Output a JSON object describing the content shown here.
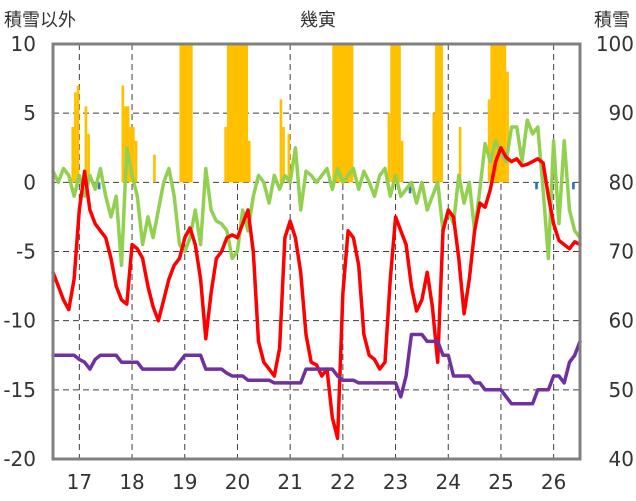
{
  "chart_data": {
    "type": "bar+line",
    "title": "幾寅",
    "left_axis_label": "積雪以外",
    "right_axis_label": "積雪",
    "left_ylim": [
      -20,
      10
    ],
    "left_ticks": [
      "10",
      "5",
      "0",
      "-5",
      "-10",
      "-15",
      "-20"
    ],
    "right_ylim": [
      40,
      100
    ],
    "right_ticks": [
      "100",
      "90",
      "80",
      "70",
      "60",
      "50",
      "40"
    ],
    "xlim": [
      16.5,
      26.5
    ],
    "x_ticks": [
      "17",
      "18",
      "19",
      "20",
      "21",
      "22",
      "23",
      "24",
      "25",
      "26"
    ],
    "grid": true,
    "colors": {
      "snow_bars": "#FFC000",
      "low_bars": "#2E75B6",
      "red": "#FF0000",
      "green": "#92D050",
      "purple": "#7030A0"
    },
    "snow_bars": [
      {
        "x_from": 16.85,
        "x_to": 16.9,
        "value": 4
      },
      {
        "x_from": 16.9,
        "x_to": 16.95,
        "value": 6.5
      },
      {
        "x_from": 16.95,
        "x_to": 17.0,
        "value": 7
      },
      {
        "x_from": 17.1,
        "x_to": 17.15,
        "value": 5.5
      },
      {
        "x_from": 17.15,
        "x_to": 17.2,
        "value": 3.5
      },
      {
        "x_from": 17.8,
        "x_to": 17.85,
        "value": 7
      },
      {
        "x_from": 17.85,
        "x_to": 17.95,
        "value": 5.5
      },
      {
        "x_from": 17.95,
        "x_to": 18.05,
        "value": 4
      },
      {
        "x_from": 18.05,
        "x_to": 18.1,
        "value": 3
      },
      {
        "x_from": 18.4,
        "x_to": 18.45,
        "value": 2
      },
      {
        "x_from": 18.9,
        "x_to": 19.15,
        "value": 10
      },
      {
        "x_from": 19.75,
        "x_to": 19.8,
        "value": 4
      },
      {
        "x_from": 19.8,
        "x_to": 20.2,
        "value": 10
      },
      {
        "x_from": 20.2,
        "x_to": 20.25,
        "value": 3
      },
      {
        "x_from": 20.8,
        "x_to": 20.85,
        "value": 6
      },
      {
        "x_from": 20.85,
        "x_to": 20.9,
        "value": 4
      },
      {
        "x_from": 20.95,
        "x_to": 21.0,
        "value": 3.5
      },
      {
        "x_from": 21.8,
        "x_to": 22.2,
        "value": 10
      },
      {
        "x_from": 22.85,
        "x_to": 22.9,
        "value": 5
      },
      {
        "x_from": 22.9,
        "x_to": 23.1,
        "value": 10
      },
      {
        "x_from": 23.1,
        "x_to": 23.15,
        "value": 3
      },
      {
        "x_from": 23.7,
        "x_to": 23.75,
        "value": 5
      },
      {
        "x_from": 23.75,
        "x_to": 23.9,
        "value": 10
      },
      {
        "x_from": 24.2,
        "x_to": 24.25,
        "value": 4
      },
      {
        "x_from": 24.75,
        "x_to": 24.8,
        "value": 6
      },
      {
        "x_from": 24.8,
        "x_to": 25.1,
        "value": 10
      },
      {
        "x_from": 25.1,
        "x_to": 25.15,
        "value": 8
      }
    ],
    "low_bars": [
      {
        "x_from": 17.35,
        "x_to": 17.4,
        "value": -0.5
      },
      {
        "x_from": 23.25,
        "x_to": 23.3,
        "value": -0.8
      },
      {
        "x_from": 25.65,
        "x_to": 25.7,
        "value": -0.5
      },
      {
        "x_from": 26.35,
        "x_to": 26.4,
        "value": -0.5
      }
    ],
    "red": [
      [
        16.5,
        -6.5
      ],
      [
        16.6,
        -7.5
      ],
      [
        16.7,
        -8.5
      ],
      [
        16.8,
        -9.2
      ],
      [
        16.9,
        -7
      ],
      [
        17.0,
        -2
      ],
      [
        17.1,
        0.8
      ],
      [
        17.2,
        -2
      ],
      [
        17.3,
        -3
      ],
      [
        17.4,
        -3.5
      ],
      [
        17.5,
        -4
      ],
      [
        17.6,
        -5.5
      ],
      [
        17.7,
        -7.5
      ],
      [
        17.8,
        -8.5
      ],
      [
        17.9,
        -8.8
      ],
      [
        18.0,
        -4.5
      ],
      [
        18.1,
        -4.8
      ],
      [
        18.2,
        -5.5
      ],
      [
        18.3,
        -7.5
      ],
      [
        18.4,
        -9
      ],
      [
        18.5,
        -10
      ],
      [
        18.6,
        -8.5
      ],
      [
        18.7,
        -7
      ],
      [
        18.8,
        -6
      ],
      [
        18.9,
        -5.5
      ],
      [
        19.0,
        -4
      ],
      [
        19.1,
        -3.3
      ],
      [
        19.2,
        -4.5
      ],
      [
        19.3,
        -7
      ],
      [
        19.4,
        -11.3
      ],
      [
        19.5,
        -8
      ],
      [
        19.6,
        -5.5
      ],
      [
        19.7,
        -5
      ],
      [
        19.8,
        -4
      ],
      [
        19.9,
        -3.8
      ],
      [
        20.0,
        -4
      ],
      [
        20.1,
        -3
      ],
      [
        20.2,
        -2
      ],
      [
        20.3,
        -5
      ],
      [
        20.4,
        -11.5
      ],
      [
        20.5,
        -13
      ],
      [
        20.6,
        -13.5
      ],
      [
        20.7,
        -14
      ],
      [
        20.8,
        -12
      ],
      [
        20.9,
        -4
      ],
      [
        21.0,
        -2.8
      ],
      [
        21.1,
        -4
      ],
      [
        21.2,
        -6.5
      ],
      [
        21.3,
        -11
      ],
      [
        21.4,
        -13
      ],
      [
        21.5,
        -13.2
      ],
      [
        21.6,
        -14
      ],
      [
        21.7,
        -13.5
      ],
      [
        21.8,
        -17
      ],
      [
        21.9,
        -18.5
      ],
      [
        22.0,
        -8
      ],
      [
        22.1,
        -3.5
      ],
      [
        22.2,
        -4
      ],
      [
        22.3,
        -6
      ],
      [
        22.4,
        -11
      ],
      [
        22.5,
        -12.5
      ],
      [
        22.6,
        -12.8
      ],
      [
        22.7,
        -13.5
      ],
      [
        22.8,
        -13
      ],
      [
        22.9,
        -7
      ],
      [
        23.0,
        -2.5
      ],
      [
        23.1,
        -3.5
      ],
      [
        23.2,
        -4.5
      ],
      [
        23.3,
        -7.5
      ],
      [
        23.4,
        -9.3
      ],
      [
        23.5,
        -8.5
      ],
      [
        23.6,
        -6.5
      ],
      [
        23.7,
        -9
      ],
      [
        23.8,
        -13
      ],
      [
        23.9,
        -3.5
      ],
      [
        24.0,
        -2
      ],
      [
        24.1,
        -2.5
      ],
      [
        24.2,
        -5.5
      ],
      [
        24.3,
        -9.5
      ],
      [
        24.4,
        -7
      ],
      [
        24.5,
        -3.5
      ],
      [
        24.6,
        -1.5
      ],
      [
        24.7,
        -1.8
      ],
      [
        24.8,
        -0.5
      ],
      [
        24.9,
        1.5
      ],
      [
        25.0,
        2.5
      ],
      [
        25.1,
        1.8
      ],
      [
        25.2,
        1.5
      ],
      [
        25.3,
        1.7
      ],
      [
        25.4,
        1.2
      ],
      [
        25.5,
        1.3
      ],
      [
        25.6,
        1.5
      ],
      [
        25.7,
        1.7
      ],
      [
        25.8,
        1.4
      ],
      [
        25.9,
        -1
      ],
      [
        26.0,
        -3
      ],
      [
        26.1,
        -4.2
      ],
      [
        26.2,
        -4.5
      ],
      [
        26.3,
        -4.8
      ],
      [
        26.4,
        -4.3
      ],
      [
        26.5,
        -4.5
      ]
    ],
    "green": [
      [
        16.5,
        0.8
      ],
      [
        16.6,
        0
      ],
      [
        16.7,
        1
      ],
      [
        16.8,
        0.5
      ],
      [
        16.9,
        -1
      ],
      [
        17.0,
        0.5
      ],
      [
        17.1,
        -1
      ],
      [
        17.2,
        0.5
      ],
      [
        17.3,
        -0.5
      ],
      [
        17.4,
        1
      ],
      [
        17.5,
        -1
      ],
      [
        17.6,
        -2.5
      ],
      [
        17.7,
        -1
      ],
      [
        17.8,
        -6
      ],
      [
        17.9,
        2.5
      ],
      [
        18.0,
        0.5
      ],
      [
        18.1,
        -1
      ],
      [
        18.2,
        -4.5
      ],
      [
        18.3,
        -2.5
      ],
      [
        18.4,
        -4
      ],
      [
        18.5,
        -2
      ],
      [
        18.6,
        0
      ],
      [
        18.7,
        1
      ],
      [
        18.8,
        -1
      ],
      [
        18.9,
        -4.5
      ],
      [
        19.0,
        -5
      ],
      [
        19.1,
        -4
      ],
      [
        19.2,
        -2
      ],
      [
        19.3,
        -4.5
      ],
      [
        19.4,
        1
      ],
      [
        19.5,
        -2
      ],
      [
        19.6,
        -2.8
      ],
      [
        19.7,
        -3
      ],
      [
        19.8,
        -3.5
      ],
      [
        19.9,
        -5.5
      ],
      [
        20.0,
        -5
      ],
      [
        20.1,
        -2
      ],
      [
        20.2,
        -3.5
      ],
      [
        20.3,
        -1
      ],
      [
        20.4,
        0.5
      ],
      [
        20.5,
        0
      ],
      [
        20.6,
        -1.5
      ],
      [
        20.7,
        0.5
      ],
      [
        20.8,
        -0.5
      ],
      [
        20.9,
        0.5
      ],
      [
        21.0,
        0
      ],
      [
        21.1,
        2.5
      ],
      [
        21.2,
        -2
      ],
      [
        21.3,
        0.8
      ],
      [
        21.4,
        0.5
      ],
      [
        21.5,
        0
      ],
      [
        21.6,
        0.5
      ],
      [
        21.7,
        1
      ],
      [
        21.8,
        -0.5
      ],
      [
        21.9,
        1
      ],
      [
        22.0,
        0
      ],
      [
        22.1,
        0.5
      ],
      [
        22.2,
        1
      ],
      [
        22.3,
        -0.5
      ],
      [
        22.4,
        0.8
      ],
      [
        22.5,
        0
      ],
      [
        22.6,
        -1
      ],
      [
        22.7,
        0.5
      ],
      [
        22.8,
        1
      ],
      [
        22.9,
        -1
      ],
      [
        23.0,
        0.5
      ],
      [
        23.1,
        -1
      ],
      [
        23.2,
        -0.5
      ],
      [
        23.3,
        0
      ],
      [
        23.4,
        -1.5
      ],
      [
        23.5,
        0
      ],
      [
        23.6,
        -2
      ],
      [
        23.7,
        -1
      ],
      [
        23.8,
        0
      ],
      [
        23.9,
        -3.5
      ],
      [
        24.0,
        -2
      ],
      [
        24.1,
        -3
      ],
      [
        24.2,
        0.5
      ],
      [
        24.3,
        -1.5
      ],
      [
        24.4,
        0
      ],
      [
        24.5,
        -3.5
      ],
      [
        24.6,
        -0.5
      ],
      [
        24.7,
        2.8
      ],
      [
        24.8,
        1.5
      ],
      [
        24.9,
        3
      ],
      [
        25.0,
        2
      ],
      [
        25.1,
        1.5
      ],
      [
        25.2,
        4
      ],
      [
        25.3,
        4
      ],
      [
        25.4,
        1.5
      ],
      [
        25.5,
        4.5
      ],
      [
        25.6,
        3.5
      ],
      [
        25.7,
        4
      ],
      [
        25.8,
        -0.5
      ],
      [
        25.9,
        -5.5
      ],
      [
        26.0,
        3
      ],
      [
        26.1,
        -3
      ],
      [
        26.2,
        3
      ],
      [
        26.3,
        -2
      ],
      [
        26.4,
        -3.5
      ],
      [
        26.5,
        -4
      ]
    ],
    "purple": [
      [
        16.5,
        -12.5
      ],
      [
        16.9,
        -12.5
      ],
      [
        17.0,
        -12.8
      ],
      [
        17.1,
        -13
      ],
      [
        17.2,
        -13.5
      ],
      [
        17.3,
        -12.8
      ],
      [
        17.4,
        -12.5
      ],
      [
        17.7,
        -12.5
      ],
      [
        17.8,
        -13
      ],
      [
        18.1,
        -13
      ],
      [
        18.2,
        -13.5
      ],
      [
        18.8,
        -13.5
      ],
      [
        18.9,
        -13
      ],
      [
        19.0,
        -12.5
      ],
      [
        19.3,
        -12.5
      ],
      [
        19.4,
        -13.5
      ],
      [
        19.5,
        -13.5
      ],
      [
        19.7,
        -13.5
      ],
      [
        19.8,
        -13.8
      ],
      [
        19.9,
        -14
      ],
      [
        20.1,
        -14
      ],
      [
        20.2,
        -14.3
      ],
      [
        20.6,
        -14.3
      ],
      [
        20.7,
        -14.5
      ],
      [
        21.2,
        -14.5
      ],
      [
        21.3,
        -13.5
      ],
      [
        21.8,
        -13.5
      ],
      [
        21.9,
        -14
      ],
      [
        22.0,
        -14.3
      ],
      [
        22.2,
        -14.3
      ],
      [
        22.3,
        -14.5
      ],
      [
        23.0,
        -14.5
      ],
      [
        23.1,
        -15.5
      ],
      [
        23.2,
        -14
      ],
      [
        23.3,
        -11
      ],
      [
        23.5,
        -11
      ],
      [
        23.6,
        -11.5
      ],
      [
        23.8,
        -11.5
      ],
      [
        23.9,
        -12.5
      ],
      [
        24.0,
        -12.5
      ],
      [
        24.1,
        -14
      ],
      [
        24.4,
        -14
      ],
      [
        24.5,
        -14.5
      ],
      [
        24.6,
        -14.5
      ],
      [
        24.7,
        -15
      ],
      [
        25.0,
        -15
      ],
      [
        25.1,
        -15.5
      ],
      [
        25.2,
        -16
      ],
      [
        25.6,
        -16
      ],
      [
        25.7,
        -15
      ],
      [
        25.9,
        -15
      ],
      [
        26.0,
        -14
      ],
      [
        26.1,
        -14
      ],
      [
        26.2,
        -14.5
      ],
      [
        26.3,
        -13
      ],
      [
        26.4,
        -12.5
      ],
      [
        26.5,
        -11.5
      ]
    ]
  }
}
